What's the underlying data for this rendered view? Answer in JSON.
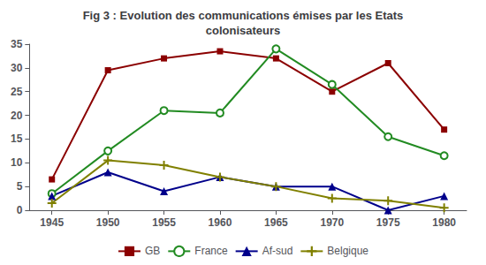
{
  "chart_data": {
    "type": "line",
    "title": "Fig 3 : Evolution des communications émises par les Etats\ncolonisateurs",
    "x": [
      1945,
      1950,
      1955,
      1960,
      1965,
      1970,
      1975,
      1980
    ],
    "series": [
      {
        "name": "GB",
        "color": "#8B0000",
        "marker": "square",
        "values": [
          6.5,
          29.5,
          32,
          33.5,
          32,
          25,
          31,
          17
        ]
      },
      {
        "name": "France",
        "color": "#228B22",
        "marker": "circle",
        "values": [
          3.5,
          12.5,
          21,
          20.5,
          34,
          26.5,
          15.5,
          11.5
        ]
      },
      {
        "name": "Af-sud",
        "color": "#00008B",
        "marker": "triangle",
        "values": [
          3,
          8,
          4,
          7,
          5,
          5,
          0,
          3
        ]
      },
      {
        "name": "Belgique",
        "color": "#808000",
        "marker": "plus",
        "values": [
          1.5,
          10.5,
          9.5,
          7,
          5,
          2.5,
          2,
          0.5
        ]
      }
    ],
    "xlim": [
      1943,
      1982
    ],
    "xticks": [
      1945,
      1950,
      1955,
      1960,
      1965,
      1970,
      1975,
      1980
    ],
    "ylim": [
      0,
      35
    ],
    "yticks": [
      0,
      5,
      10,
      15,
      20,
      25,
      30,
      35
    ],
    "grid": false,
    "legend": "bottom"
  }
}
